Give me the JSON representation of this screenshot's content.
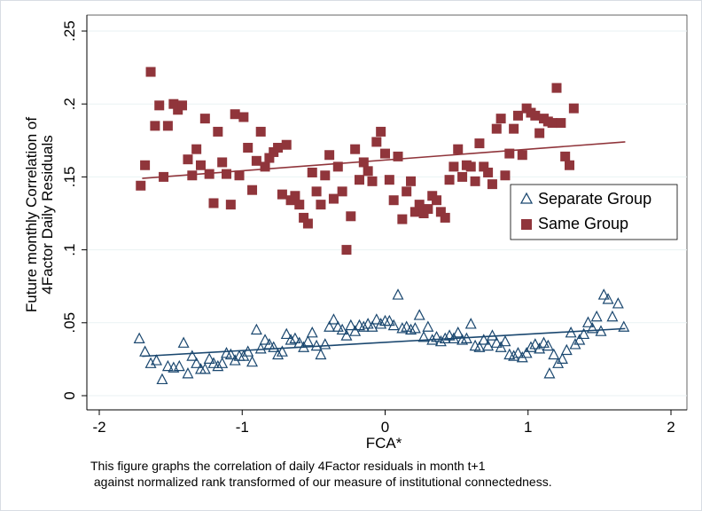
{
  "chart_data": {
    "type": "scatter",
    "title": "",
    "xlabel": "FCA*",
    "ylabel_lines": [
      "Future monthly Correlation of",
      "4Factor Daily Residuals"
    ],
    "xlim": [
      -2,
      2
    ],
    "ylim": [
      0,
      0.25
    ],
    "x_ticks": [
      -2,
      -1,
      0,
      1,
      2
    ],
    "x_tick_labels": [
      "-2",
      "-1",
      "0",
      "1",
      "2"
    ],
    "y_ticks": [
      0,
      0.05,
      0.1,
      0.15,
      0.2,
      0.25
    ],
    "y_tick_labels": [
      "0",
      ".05",
      ".1",
      ".15",
      ".2",
      ".25"
    ],
    "grid": "horizontal",
    "legend_position": "right",
    "series": [
      {
        "name": "Separate Group",
        "marker": "hollow-triangle",
        "color": "#1a476f",
        "fit_line": {
          "x": [
            -1.7,
            1.68
          ],
          "y": [
            0.027,
            0.046
          ]
        },
        "points": [
          [
            -1.72,
            0.039
          ],
          [
            -1.68,
            0.03
          ],
          [
            -1.64,
            0.022
          ],
          [
            -1.6,
            0.024
          ],
          [
            -1.56,
            0.011
          ],
          [
            -1.52,
            0.02
          ],
          [
            -1.48,
            0.019
          ],
          [
            -1.44,
            0.02
          ],
          [
            -1.41,
            0.036
          ],
          [
            -1.38,
            0.015
          ],
          [
            -1.35,
            0.027
          ],
          [
            -1.32,
            0.022
          ],
          [
            -1.29,
            0.018
          ],
          [
            -1.26,
            0.018
          ],
          [
            -1.23,
            0.025
          ],
          [
            -1.2,
            0.022
          ],
          [
            -1.17,
            0.02
          ],
          [
            -1.14,
            0.022
          ],
          [
            -1.11,
            0.029
          ],
          [
            -1.08,
            0.028
          ],
          [
            -1.05,
            0.024
          ],
          [
            -1.02,
            0.027
          ],
          [
            -0.99,
            0.027
          ],
          [
            -0.96,
            0.03
          ],
          [
            -0.93,
            0.023
          ],
          [
            -0.9,
            0.045
          ],
          [
            -0.87,
            0.032
          ],
          [
            -0.84,
            0.038
          ],
          [
            -0.81,
            0.035
          ],
          [
            -0.78,
            0.033
          ],
          [
            -0.75,
            0.028
          ],
          [
            -0.72,
            0.03
          ],
          [
            -0.69,
            0.042
          ],
          [
            -0.66,
            0.038
          ],
          [
            -0.63,
            0.039
          ],
          [
            -0.6,
            0.036
          ],
          [
            -0.57,
            0.033
          ],
          [
            -0.54,
            0.037
          ],
          [
            -0.51,
            0.043
          ],
          [
            -0.48,
            0.034
          ],
          [
            -0.45,
            0.028
          ],
          [
            -0.42,
            0.035
          ],
          [
            -0.39,
            0.047
          ],
          [
            -0.36,
            0.052
          ],
          [
            -0.33,
            0.047
          ],
          [
            -0.3,
            0.045
          ],
          [
            -0.27,
            0.041
          ],
          [
            -0.24,
            0.048
          ],
          [
            -0.21,
            0.044
          ],
          [
            -0.18,
            0.048
          ],
          [
            -0.15,
            0.047
          ],
          [
            -0.12,
            0.049
          ],
          [
            -0.09,
            0.047
          ],
          [
            -0.06,
            0.052
          ],
          [
            -0.03,
            0.049
          ],
          [
            0.0,
            0.051
          ],
          [
            0.03,
            0.051
          ],
          [
            0.06,
            0.048
          ],
          [
            0.09,
            0.069
          ],
          [
            0.12,
            0.046
          ],
          [
            0.15,
            0.047
          ],
          [
            0.18,
            0.045
          ],
          [
            0.21,
            0.046
          ],
          [
            0.24,
            0.055
          ],
          [
            0.27,
            0.04
          ],
          [
            0.3,
            0.047
          ],
          [
            0.33,
            0.038
          ],
          [
            0.36,
            0.04
          ],
          [
            0.39,
            0.037
          ],
          [
            0.42,
            0.039
          ],
          [
            0.45,
            0.041
          ],
          [
            0.48,
            0.039
          ],
          [
            0.51,
            0.043
          ],
          [
            0.54,
            0.038
          ],
          [
            0.57,
            0.039
          ],
          [
            0.6,
            0.049
          ],
          [
            0.63,
            0.034
          ],
          [
            0.66,
            0.033
          ],
          [
            0.69,
            0.038
          ],
          [
            0.72,
            0.034
          ],
          [
            0.75,
            0.041
          ],
          [
            0.78,
            0.036
          ],
          [
            0.81,
            0.033
          ],
          [
            0.84,
            0.037
          ],
          [
            0.87,
            0.028
          ],
          [
            0.9,
            0.027
          ],
          [
            0.93,
            0.029
          ],
          [
            0.96,
            0.026
          ],
          [
            0.99,
            0.029
          ],
          [
            1.02,
            0.033
          ],
          [
            1.05,
            0.035
          ],
          [
            1.08,
            0.032
          ],
          [
            1.11,
            0.036
          ],
          [
            1.14,
            0.034
          ],
          [
            1.15,
            0.015
          ],
          [
            1.18,
            0.028
          ],
          [
            1.21,
            0.022
          ],
          [
            1.24,
            0.025
          ],
          [
            1.27,
            0.031
          ],
          [
            1.3,
            0.043
          ],
          [
            1.33,
            0.035
          ],
          [
            1.36,
            0.038
          ],
          [
            1.39,
            0.042
          ],
          [
            1.42,
            0.05
          ],
          [
            1.45,
            0.046
          ],
          [
            1.48,
            0.054
          ],
          [
            1.51,
            0.044
          ],
          [
            1.53,
            0.069
          ],
          [
            1.56,
            0.066
          ],
          [
            1.59,
            0.054
          ],
          [
            1.63,
            0.063
          ],
          [
            1.67,
            0.047
          ]
        ]
      },
      {
        "name": "Same Group",
        "marker": "filled-square",
        "color": "#90353b",
        "fit_line": {
          "x": [
            -1.7,
            1.68
          ],
          "y": [
            0.149,
            0.174
          ]
        },
        "points": [
          [
            -1.71,
            0.144
          ],
          [
            -1.68,
            0.158
          ],
          [
            -1.64,
            0.222
          ],
          [
            -1.61,
            0.185
          ],
          [
            -1.58,
            0.199
          ],
          [
            -1.55,
            0.15
          ],
          [
            -1.52,
            0.185
          ],
          [
            -1.48,
            0.2
          ],
          [
            -1.45,
            0.196
          ],
          [
            -1.42,
            0.199
          ],
          [
            -1.38,
            0.162
          ],
          [
            -1.35,
            0.151
          ],
          [
            -1.32,
            0.169
          ],
          [
            -1.29,
            0.158
          ],
          [
            -1.26,
            0.19
          ],
          [
            -1.23,
            0.152
          ],
          [
            -1.2,
            0.132
          ],
          [
            -1.17,
            0.181
          ],
          [
            -1.14,
            0.16
          ],
          [
            -1.11,
            0.152
          ],
          [
            -1.08,
            0.131
          ],
          [
            -1.05,
            0.193
          ],
          [
            -1.02,
            0.151
          ],
          [
            -0.99,
            0.191
          ],
          [
            -0.96,
            0.17
          ],
          [
            -0.93,
            0.141
          ],
          [
            -0.9,
            0.161
          ],
          [
            -0.87,
            0.181
          ],
          [
            -0.84,
            0.157
          ],
          [
            -0.81,
            0.163
          ],
          [
            -0.78,
            0.167
          ],
          [
            -0.75,
            0.17
          ],
          [
            -0.72,
            0.138
          ],
          [
            -0.69,
            0.172
          ],
          [
            -0.66,
            0.134
          ],
          [
            -0.63,
            0.137
          ],
          [
            -0.6,
            0.131
          ],
          [
            -0.57,
            0.122
          ],
          [
            -0.54,
            0.118
          ],
          [
            -0.51,
            0.153
          ],
          [
            -0.48,
            0.14
          ],
          [
            -0.45,
            0.131
          ],
          [
            -0.42,
            0.151
          ],
          [
            -0.39,
            0.165
          ],
          [
            -0.36,
            0.135
          ],
          [
            -0.33,
            0.157
          ],
          [
            -0.3,
            0.14
          ],
          [
            -0.27,
            0.1
          ],
          [
            -0.24,
            0.123
          ],
          [
            -0.21,
            0.169
          ],
          [
            -0.18,
            0.148
          ],
          [
            -0.15,
            0.16
          ],
          [
            -0.12,
            0.154
          ],
          [
            -0.09,
            0.147
          ],
          [
            -0.06,
            0.174
          ],
          [
            -0.03,
            0.181
          ],
          [
            0.0,
            0.166
          ],
          [
            0.03,
            0.148
          ],
          [
            0.06,
            0.134
          ],
          [
            0.09,
            0.164
          ],
          [
            0.12,
            0.121
          ],
          [
            0.15,
            0.14
          ],
          [
            0.18,
            0.147
          ],
          [
            0.21,
            0.126
          ],
          [
            0.24,
            0.131
          ],
          [
            0.27,
            0.125
          ],
          [
            0.3,
            0.128
          ],
          [
            0.33,
            0.137
          ],
          [
            0.36,
            0.134
          ],
          [
            0.39,
            0.126
          ],
          [
            0.42,
            0.122
          ],
          [
            0.45,
            0.148
          ],
          [
            0.48,
            0.157
          ],
          [
            0.51,
            0.169
          ],
          [
            0.54,
            0.15
          ],
          [
            0.57,
            0.158
          ],
          [
            0.6,
            0.157
          ],
          [
            0.63,
            0.147
          ],
          [
            0.66,
            0.173
          ],
          [
            0.69,
            0.157
          ],
          [
            0.72,
            0.153
          ],
          [
            0.75,
            0.145
          ],
          [
            0.78,
            0.183
          ],
          [
            0.81,
            0.19
          ],
          [
            0.84,
            0.151
          ],
          [
            0.87,
            0.166
          ],
          [
            0.9,
            0.183
          ],
          [
            0.93,
            0.192
          ],
          [
            0.96,
            0.165
          ],
          [
            0.99,
            0.197
          ],
          [
            1.02,
            0.194
          ],
          [
            1.05,
            0.192
          ],
          [
            1.08,
            0.18
          ],
          [
            1.11,
            0.19
          ],
          [
            1.14,
            0.188
          ],
          [
            1.17,
            0.187
          ],
          [
            1.2,
            0.211
          ],
          [
            1.23,
            0.187
          ],
          [
            1.26,
            0.164
          ],
          [
            1.29,
            0.158
          ],
          [
            1.32,
            0.197
          ]
        ]
      }
    ]
  },
  "caption": {
    "line1": "This figure graphs the correlation of daily 4Factor residuals in month t+1",
    "line2": " against normalized rank transformed of our measure of institutional connectedness."
  }
}
